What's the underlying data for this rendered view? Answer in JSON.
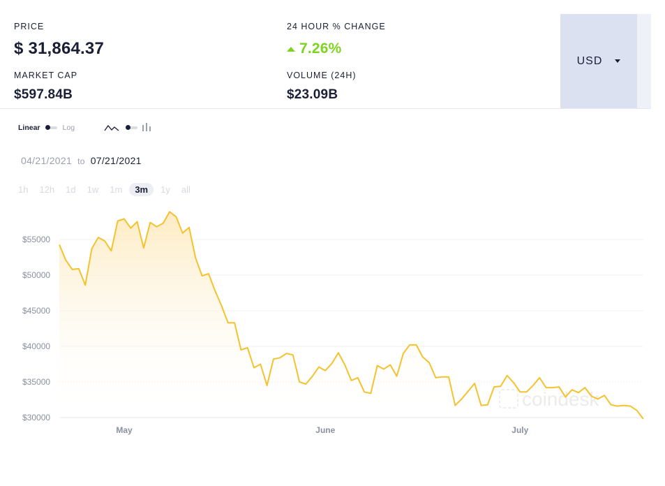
{
  "stats": {
    "price_label": "PRICE",
    "price_currency_symbol": "$",
    "price_value": "31,864.37",
    "change_label": "24 HOUR % CHANGE",
    "change_value": "7.26%",
    "change_color": "#7ed321",
    "market_cap_label": "MARKET CAP",
    "market_cap_value": "$597.84B",
    "volume_label": "VOLUME (24H)",
    "volume_value": "$23.09B"
  },
  "currency_select": {
    "selected": "USD",
    "icon": "caret-down-icon",
    "background": "#dbe1f1"
  },
  "scale_toggle": {
    "left_label": "Linear",
    "right_label": "Log",
    "selected": "Linear"
  },
  "chart_type_toggle": {
    "left_icon": "line-chart-icon",
    "right_icon": "candlestick-icon",
    "selected": "line"
  },
  "date_range": {
    "from": "04/21/2021",
    "separator": "to",
    "to": "07/21/2021"
  },
  "time_ranges": {
    "items": [
      {
        "label": "1h"
      },
      {
        "label": "12h"
      },
      {
        "label": "1d"
      },
      {
        "label": "1w"
      },
      {
        "label": "1m"
      },
      {
        "label": "3m"
      },
      {
        "label": "1y"
      },
      {
        "label": "all"
      }
    ],
    "active": "3m"
  },
  "watermark": "coindesk",
  "chart_data": {
    "type": "area",
    "line_color": "#f5c22d",
    "fill_color": "#fdebc4",
    "y_ticks": [
      55000,
      50000,
      45000,
      40000,
      35000,
      30000
    ],
    "y_tick_labels": [
      "$55000",
      "$50000",
      "$45000",
      "$40000",
      "$35000",
      "$30000"
    ],
    "ylim": [
      29800,
      60200
    ],
    "x_labels": [
      {
        "label": "May",
        "date": "2021-05-01"
      },
      {
        "label": "June",
        "date": "2021-06-01"
      },
      {
        "label": "July",
        "date": "2021-07-01"
      }
    ],
    "x_range": [
      "2021-04-21",
      "2021-07-21"
    ],
    "series": [
      {
        "points": [
          [
            "2021-04-21",
            54300
          ],
          [
            "2021-04-22",
            52100
          ],
          [
            "2021-04-23",
            50800
          ],
          [
            "2021-04-24",
            50900
          ],
          [
            "2021-04-25",
            48600
          ],
          [
            "2021-04-26",
            53700
          ],
          [
            "2021-04-27",
            55300
          ],
          [
            "2021-04-28",
            54800
          ],
          [
            "2021-04-29",
            53400
          ],
          [
            "2021-04-30",
            57600
          ],
          [
            "2021-05-01",
            57900
          ],
          [
            "2021-05-02",
            56600
          ],
          [
            "2021-05-03",
            57500
          ],
          [
            "2021-05-04",
            53800
          ],
          [
            "2021-05-05",
            57400
          ],
          [
            "2021-05-06",
            56800
          ],
          [
            "2021-05-07",
            57300
          ],
          [
            "2021-05-08",
            58900
          ],
          [
            "2021-05-09",
            58200
          ],
          [
            "2021-05-10",
            55900
          ],
          [
            "2021-05-11",
            56700
          ],
          [
            "2021-05-12",
            52400
          ],
          [
            "2021-05-13",
            49900
          ],
          [
            "2021-05-14",
            50200
          ],
          [
            "2021-05-15",
            47800
          ],
          [
            "2021-05-16",
            45700
          ],
          [
            "2021-05-17",
            43300
          ],
          [
            "2021-05-18",
            43300
          ],
          [
            "2021-05-19",
            39500
          ],
          [
            "2021-05-20",
            39800
          ],
          [
            "2021-05-21",
            37000
          ],
          [
            "2021-05-22",
            37500
          ],
          [
            "2021-05-23",
            34500
          ],
          [
            "2021-05-24",
            38200
          ],
          [
            "2021-05-25",
            38400
          ],
          [
            "2021-05-26",
            39000
          ],
          [
            "2021-05-27",
            38800
          ],
          [
            "2021-05-28",
            35000
          ],
          [
            "2021-05-29",
            34700
          ],
          [
            "2021-05-30",
            35800
          ],
          [
            "2021-05-31",
            37100
          ],
          [
            "2021-06-01",
            36600
          ],
          [
            "2021-06-02",
            37600
          ],
          [
            "2021-06-03",
            39100
          ],
          [
            "2021-06-04",
            37400
          ],
          [
            "2021-06-05",
            35200
          ],
          [
            "2021-06-06",
            35600
          ],
          [
            "2021-06-07",
            33600
          ],
          [
            "2021-06-08",
            33400
          ],
          [
            "2021-06-09",
            37300
          ],
          [
            "2021-06-10",
            36800
          ],
          [
            "2021-06-11",
            37400
          ],
          [
            "2021-06-12",
            35800
          ],
          [
            "2021-06-13",
            39000
          ],
          [
            "2021-06-14",
            40200
          ],
          [
            "2021-06-15",
            40200
          ],
          [
            "2021-06-16",
            38500
          ],
          [
            "2021-06-17",
            37700
          ],
          [
            "2021-06-18",
            35600
          ],
          [
            "2021-06-19",
            35700
          ],
          [
            "2021-06-20",
            35700
          ],
          [
            "2021-06-21",
            31700
          ],
          [
            "2021-06-22",
            32600
          ],
          [
            "2021-06-23",
            33700
          ],
          [
            "2021-06-24",
            34800
          ],
          [
            "2021-06-25",
            31700
          ],
          [
            "2021-06-26",
            31800
          ],
          [
            "2021-06-27",
            34300
          ],
          [
            "2021-06-28",
            34400
          ],
          [
            "2021-06-29",
            35900
          ],
          [
            "2021-06-30",
            34900
          ],
          [
            "2021-07-01",
            33600
          ],
          [
            "2021-07-02",
            33600
          ],
          [
            "2021-07-03",
            34500
          ],
          [
            "2021-07-04",
            35600
          ],
          [
            "2021-07-05",
            34200
          ],
          [
            "2021-07-06",
            34200
          ],
          [
            "2021-07-07",
            34300
          ],
          [
            "2021-07-08",
            32900
          ],
          [
            "2021-07-09",
            33900
          ],
          [
            "2021-07-10",
            33500
          ],
          [
            "2021-07-11",
            34200
          ],
          [
            "2021-07-12",
            33000
          ],
          [
            "2021-07-13",
            32600
          ],
          [
            "2021-07-14",
            33100
          ],
          [
            "2021-07-15",
            31800
          ],
          [
            "2021-07-16",
            31600
          ],
          [
            "2021-07-17",
            31700
          ],
          [
            "2021-07-18",
            31600
          ],
          [
            "2021-07-19",
            31000
          ],
          [
            "2021-07-20",
            29800
          ]
        ]
      }
    ]
  }
}
